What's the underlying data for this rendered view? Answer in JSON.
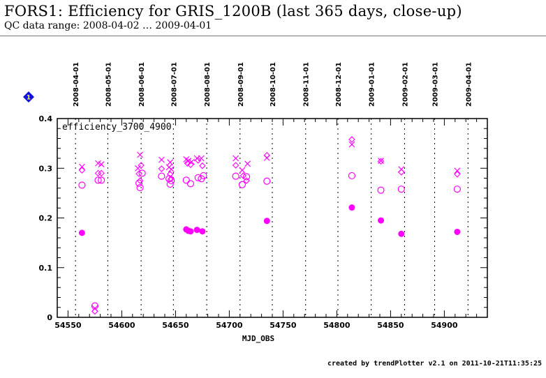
{
  "header": {
    "title": "FORS1: Efficiency for GRIS_1200B (last 365 days, close-up)",
    "subtitle": "QC data range: 2008-04-02 … 2009-04-01"
  },
  "badge": {
    "label": "1",
    "icon": "diamond-number-icon",
    "fill": "#1010e0",
    "text_color": "#ffff00"
  },
  "footer": {
    "text": "created by trendPlotter v2.1 on 2011-10-21T11:35:25"
  },
  "chart_data": {
    "type": "scatter",
    "title": "FORS1: Efficiency for GRIS_1200B (last 365 days, close-up)",
    "panel_label": "efficiency_3700_4900",
    "xlabel": "MJD_OBS",
    "ylabel": "",
    "xlim": [
      54540,
      54940
    ],
    "ylim": [
      0,
      0.4
    ],
    "x_ticks": [
      54550,
      54600,
      54650,
      54700,
      54750,
      54800,
      54850,
      54900
    ],
    "x_tick_labels": [
      "54550",
      "54600",
      "54650",
      "54700",
      "54750",
      "54800",
      "54850",
      "54900"
    ],
    "y_ticks": [
      0,
      0.1,
      0.2,
      0.3,
      0.4
    ],
    "y_tick_labels": [
      "0",
      "0.1",
      "0.2",
      "0.3",
      "0.4"
    ],
    "grid": "vertical dotted lines at month boundaries",
    "date_axis": {
      "labels": [
        "2008-04-01",
        "2008-05-01",
        "2008-06-01",
        "2008-07-01",
        "2008-08-01",
        "2008-09-01",
        "2008-10-01",
        "2008-11-01",
        "2008-12-01",
        "2009-01-01",
        "2009-02-01",
        "2009-03-01",
        "2009-04-01"
      ],
      "mjd": [
        54557,
        54587,
        54618,
        54648,
        54679,
        54710,
        54740,
        54771,
        54801,
        54832,
        54863,
        54891,
        54922
      ]
    },
    "color": "#ff00ff",
    "series": [
      {
        "name": "cross",
        "marker": "x",
        "x": [
          54563,
          54578,
          54581,
          54575,
          54617,
          54615,
          54637,
          54645,
          54644,
          54646,
          54660,
          54662,
          54665,
          54670,
          54674,
          54706,
          54712,
          54717,
          54735,
          54814,
          54841,
          54860,
          54912
        ],
        "y": [
          0.303,
          0.31,
          0.308,
          0.018,
          0.327,
          0.3,
          0.317,
          0.312,
          0.302,
          0.298,
          0.318,
          0.315,
          0.313,
          0.32,
          0.32,
          0.32,
          0.296,
          0.309,
          0.321,
          0.348,
          0.315,
          0.298,
          0.295
        ]
      },
      {
        "name": "diamond",
        "marker": "diamond",
        "x": [
          54563,
          54578,
          54581,
          54575,
          54618,
          54616,
          54617,
          54637,
          54645,
          54646,
          54661,
          54664,
          54671,
          54675,
          54706,
          54713,
          54716,
          54735,
          54814,
          54841,
          54860,
          54912
        ],
        "y": [
          0.296,
          0.29,
          0.29,
          0.012,
          0.306,
          0.289,
          0.275,
          0.299,
          0.288,
          0.279,
          0.31,
          0.307,
          0.316,
          0.305,
          0.306,
          0.285,
          0.275,
          0.326,
          0.358,
          0.314,
          0.292,
          0.288
        ]
      },
      {
        "name": "open circle",
        "marker": "o",
        "x": [
          54563,
          54578,
          54581,
          54575,
          54619,
          54616,
          54617,
          54637,
          54644,
          54645,
          54646,
          54660,
          54664,
          54671,
          54674,
          54676,
          54706,
          54712,
          54716,
          54735,
          54814,
          54841,
          54860,
          54912
        ],
        "y": [
          0.266,
          0.276,
          0.276,
          0.023,
          0.29,
          0.27,
          0.261,
          0.284,
          0.279,
          0.268,
          0.275,
          0.276,
          0.269,
          0.281,
          0.279,
          0.285,
          0.284,
          0.267,
          0.283,
          0.274,
          0.285,
          0.256,
          0.258,
          0.258
        ]
      },
      {
        "name": "filled circle",
        "marker": "filled",
        "x": [
          54563,
          54660,
          54662,
          54664,
          54670,
          54675,
          54735,
          54814,
          54841,
          54860,
          54912
        ],
        "y": [
          0.17,
          0.177,
          0.174,
          0.173,
          0.176,
          0.173,
          0.194,
          0.221,
          0.195,
          0.168,
          0.172
        ]
      }
    ]
  }
}
